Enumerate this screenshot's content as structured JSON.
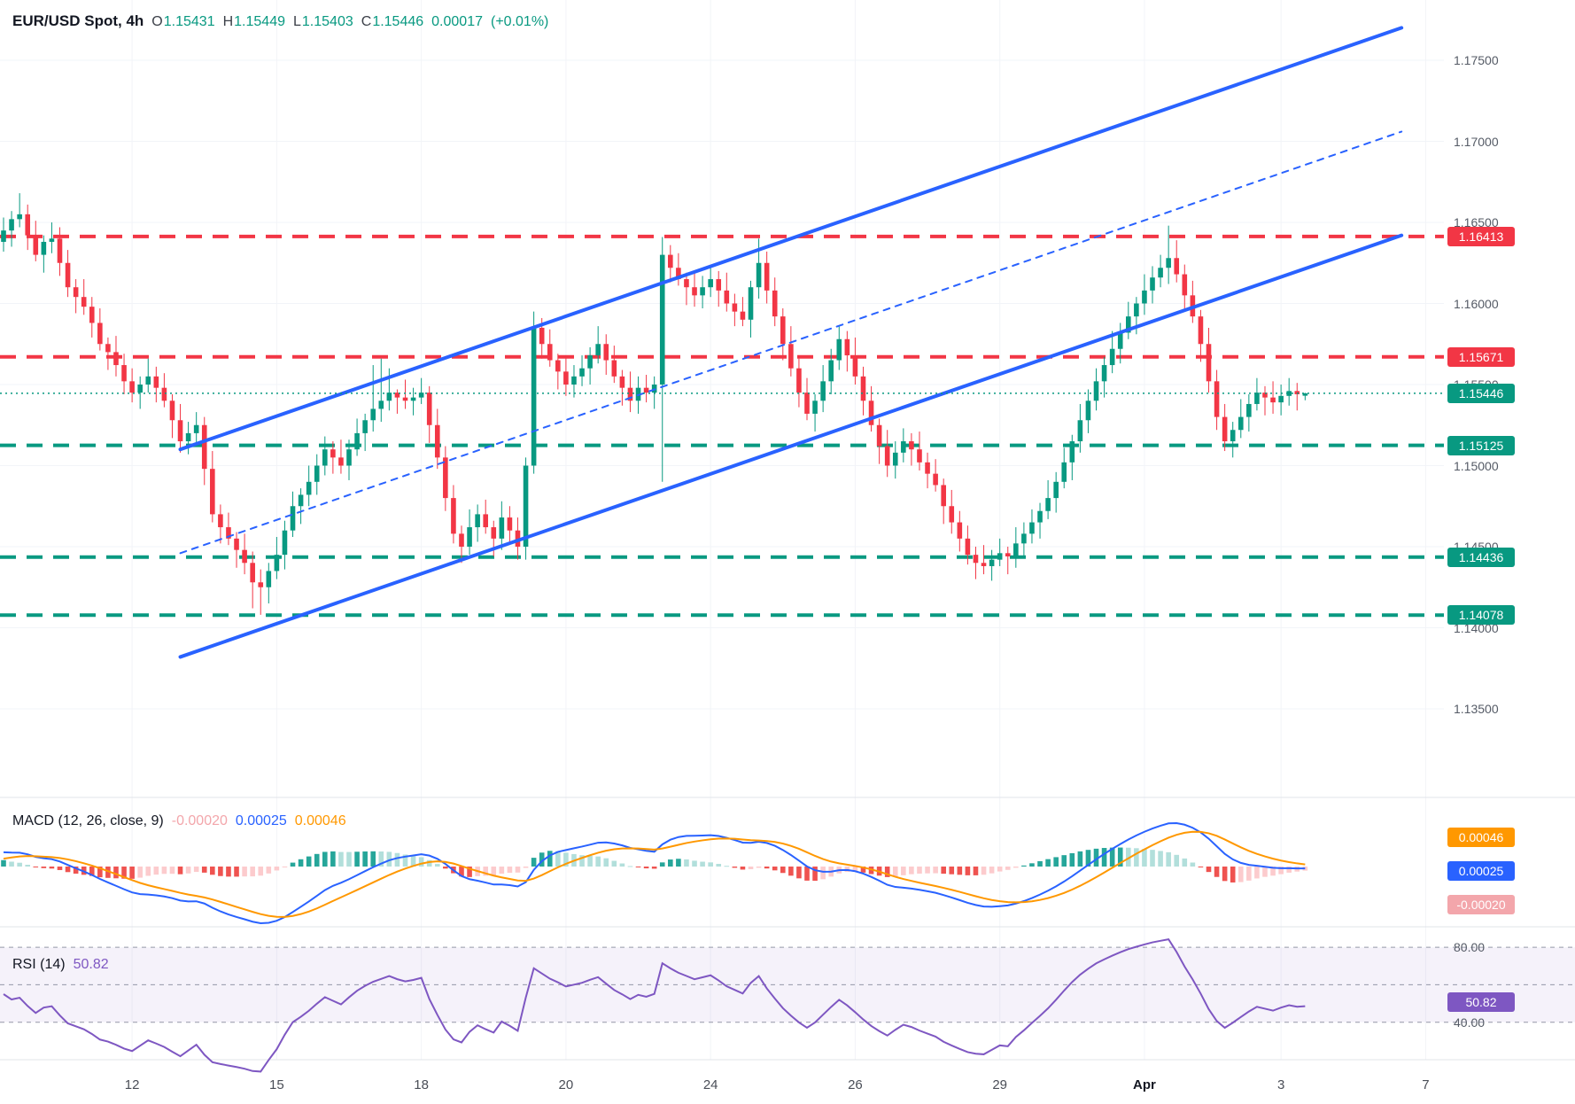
{
  "header": {
    "title": "EUR/USD Spot, 4h",
    "ohlc": [
      {
        "label": "O",
        "value": "1.15431"
      },
      {
        "label": "H",
        "value": "1.15449"
      },
      {
        "label": "L",
        "value": "1.15403"
      },
      {
        "label": "C",
        "value": "1.15446"
      }
    ],
    "change": "0.00017",
    "change_pct": "(+0.01%)"
  },
  "macd_legend": {
    "title": "MACD (12, 26, close, 9)",
    "histogram": "-0.00020",
    "macd": "0.00025",
    "signal": "0.00046"
  },
  "rsi_legend": {
    "title": "RSI (14)",
    "value": "50.82"
  },
  "axis": {
    "price_ticks": [
      {
        "price": 1.175,
        "label": "1.17500"
      },
      {
        "price": 1.17,
        "label": "1.17000"
      },
      {
        "price": 1.165,
        "label": "1.16500"
      },
      {
        "price": 1.16,
        "label": "1.16000"
      },
      {
        "price": 1.155,
        "label": "1.15500"
      },
      {
        "price": 1.15,
        "label": "1.15000"
      },
      {
        "price": 1.145,
        "label": "1.14500"
      },
      {
        "price": 1.14,
        "label": "1.14000"
      },
      {
        "price": 1.135,
        "label": "1.13500"
      }
    ],
    "time_ticks": [
      {
        "index": 16,
        "label": "12"
      },
      {
        "index": 34,
        "label": "15"
      },
      {
        "index": 52,
        "label": "18"
      },
      {
        "index": 70,
        "label": "20"
      },
      {
        "index": 88,
        "label": "24"
      },
      {
        "index": 106,
        "label": "26"
      },
      {
        "index": 124,
        "label": "29"
      },
      {
        "index": 142,
        "label": "Apr",
        "emphasis": true
      },
      {
        "index": 159,
        "label": "3"
      },
      {
        "index": 177,
        "label": "7"
      }
    ],
    "rsi_ticks": [
      {
        "value": 80,
        "label": "80.00"
      },
      {
        "value": 40,
        "label": "40.00"
      }
    ]
  },
  "badges": {
    "macd": [
      {
        "label": "0.00046",
        "color": "#ff9800"
      },
      {
        "label": "0.00025",
        "color": "#2962ff"
      },
      {
        "label": "-0.00020",
        "color": "#f3a6ab"
      }
    ],
    "rsi": {
      "label": "50.82"
    }
  },
  "colors": {
    "up": "#089981",
    "down": "#f23645",
    "trend": "#2962ff",
    "grid": "#f2f4f8",
    "separator": "#e1e4ea",
    "macd_pos": "#26a69a",
    "macd_pos_light": "#b2dfdb",
    "macd_neg": "#ef5350",
    "macd_neg_light": "#fccbcd",
    "macd_line": "#2962ff",
    "macd_signal": "#ff9800",
    "rsi_line": "#7e57c2",
    "rsi_band": "rgba(126,87,194,0.08)",
    "rsi_level": "#9598a8"
  },
  "chart_data": {
    "type": "candlestick",
    "symbol": "EUR/USD Spot",
    "timeframe": "4h",
    "current_bar": {
      "open": 1.15431,
      "high": 1.15449,
      "low": 1.15403,
      "close": 1.15446,
      "change": 0.00017,
      "change_pct": 0.01
    },
    "ylim": [
      1.1298,
      1.1787
    ],
    "candles": [
      [
        1.1638,
        1.1653,
        1.1632,
        1.1645
      ],
      [
        1.1645,
        1.1657,
        1.1635,
        1.1652
      ],
      [
        1.1652,
        1.1668,
        1.1647,
        1.1655
      ],
      [
        1.1655,
        1.1661,
        1.1633,
        1.1642
      ],
      [
        1.1642,
        1.1651,
        1.1626,
        1.163
      ],
      [
        1.163,
        1.1642,
        1.1619,
        1.1638
      ],
      [
        1.1638,
        1.165,
        1.1631,
        1.164
      ],
      [
        1.164,
        1.1647,
        1.1617,
        1.1625
      ],
      [
        1.1625,
        1.1633,
        1.1604,
        1.161
      ],
      [
        1.161,
        1.1615,
        1.1594,
        1.1604
      ],
      [
        1.1604,
        1.1615,
        1.1593,
        1.1598
      ],
      [
        1.1598,
        1.1604,
        1.1579,
        1.1588
      ],
      [
        1.1588,
        1.1597,
        1.1571,
        1.1575
      ],
      [
        1.1575,
        1.1579,
        1.1559,
        1.157
      ],
      [
        1.157,
        1.158,
        1.1555,
        1.1562
      ],
      [
        1.1562,
        1.1569,
        1.1544,
        1.1552
      ],
      [
        1.1552,
        1.156,
        1.1539,
        1.1545
      ],
      [
        1.1545,
        1.1555,
        1.1535,
        1.155
      ],
      [
        1.155,
        1.1566,
        1.1545,
        1.1555
      ],
      [
        1.1555,
        1.1561,
        1.1539,
        1.1548
      ],
      [
        1.1548,
        1.1557,
        1.1536,
        1.154
      ],
      [
        1.154,
        1.1544,
        1.1517,
        1.1528
      ],
      [
        1.1528,
        1.1538,
        1.1508,
        1.1515
      ],
      [
        1.1515,
        1.1527,
        1.1507,
        1.152
      ],
      [
        1.152,
        1.1533,
        1.1514,
        1.1525
      ],
      [
        1.1525,
        1.153,
        1.1488,
        1.1498
      ],
      [
        1.1498,
        1.1509,
        1.1465,
        1.147
      ],
      [
        1.147,
        1.1476,
        1.1452,
        1.1462
      ],
      [
        1.1462,
        1.1471,
        1.1451,
        1.1455
      ],
      [
        1.1455,
        1.1459,
        1.1437,
        1.1448
      ],
      [
        1.1448,
        1.1458,
        1.1433,
        1.144
      ],
      [
        1.144,
        1.1447,
        1.1412,
        1.1428
      ],
      [
        1.1428,
        1.1436,
        1.1408,
        1.1425
      ],
      [
        1.1425,
        1.144,
        1.1415,
        1.1435
      ],
      [
        1.1435,
        1.1456,
        1.143,
        1.1445
      ],
      [
        1.1445,
        1.1466,
        1.1436,
        1.146
      ],
      [
        1.146,
        1.1484,
        1.1456,
        1.1475
      ],
      [
        1.1475,
        1.1486,
        1.1464,
        1.1482
      ],
      [
        1.1482,
        1.15,
        1.1475,
        1.149
      ],
      [
        1.149,
        1.1507,
        1.1482,
        1.15
      ],
      [
        1.15,
        1.1518,
        1.1494,
        1.151
      ],
      [
        1.151,
        1.1515,
        1.1495,
        1.1505
      ],
      [
        1.1505,
        1.1516,
        1.1495,
        1.15
      ],
      [
        1.15,
        1.1516,
        1.1491,
        1.151
      ],
      [
        1.151,
        1.1529,
        1.1506,
        1.152
      ],
      [
        1.152,
        1.1532,
        1.1509,
        1.1528
      ],
      [
        1.1528,
        1.1562,
        1.1521,
        1.1535
      ],
      [
        1.1535,
        1.1566,
        1.1527,
        1.154
      ],
      [
        1.154,
        1.156,
        1.1534,
        1.1545
      ],
      [
        1.1545,
        1.1547,
        1.1532,
        1.1542
      ],
      [
        1.1542,
        1.1553,
        1.1535,
        1.154
      ],
      [
        1.154,
        1.1548,
        1.1531,
        1.1542
      ],
      [
        1.1542,
        1.1554,
        1.1538,
        1.1545
      ],
      [
        1.1545,
        1.1549,
        1.1514,
        1.1525
      ],
      [
        1.1525,
        1.1535,
        1.1498,
        1.1505
      ],
      [
        1.1505,
        1.1512,
        1.1472,
        1.148
      ],
      [
        1.148,
        1.1488,
        1.1452,
        1.1458
      ],
      [
        1.1458,
        1.1463,
        1.144,
        1.145
      ],
      [
        1.145,
        1.1473,
        1.1445,
        1.1462
      ],
      [
        1.1462,
        1.1476,
        1.1453,
        1.147
      ],
      [
        1.147,
        1.1479,
        1.1458,
        1.1462
      ],
      [
        1.1462,
        1.1466,
        1.1444,
        1.1455
      ],
      [
        1.1455,
        1.1478,
        1.1448,
        1.1468
      ],
      [
        1.1468,
        1.1475,
        1.1452,
        1.146
      ],
      [
        1.146,
        1.1468,
        1.1442,
        1.145
      ],
      [
        1.145,
        1.1505,
        1.1442,
        1.15
      ],
      [
        1.15,
        1.1595,
        1.1495,
        1.1585
      ],
      [
        1.1585,
        1.1591,
        1.1566,
        1.1575
      ],
      [
        1.1575,
        1.1584,
        1.1561,
        1.1565
      ],
      [
        1.1565,
        1.1569,
        1.1547,
        1.1558
      ],
      [
        1.1558,
        1.1568,
        1.1543,
        1.155
      ],
      [
        1.155,
        1.1562,
        1.1542,
        1.1555
      ],
      [
        1.1555,
        1.1568,
        1.1549,
        1.156
      ],
      [
        1.156,
        1.1573,
        1.155,
        1.1568
      ],
      [
        1.1568,
        1.1586,
        1.1563,
        1.1575
      ],
      [
        1.1575,
        1.1581,
        1.1556,
        1.1565
      ],
      [
        1.1565,
        1.1574,
        1.1551,
        1.1555
      ],
      [
        1.1555,
        1.1559,
        1.1537,
        1.1548
      ],
      [
        1.1548,
        1.1558,
        1.1533,
        1.154
      ],
      [
        1.154,
        1.1555,
        1.1532,
        1.1548
      ],
      [
        1.1548,
        1.1556,
        1.1539,
        1.1545
      ],
      [
        1.1545,
        1.1555,
        1.1535,
        1.155
      ],
      [
        1.155,
        1.1641,
        1.149,
        1.163
      ],
      [
        1.163,
        1.1636,
        1.1613,
        1.1622
      ],
      [
        1.1622,
        1.1631,
        1.1611,
        1.1615
      ],
      [
        1.1615,
        1.1619,
        1.1599,
        1.161
      ],
      [
        1.161,
        1.162,
        1.1598,
        1.1605
      ],
      [
        1.1605,
        1.1617,
        1.1597,
        1.161
      ],
      [
        1.161,
        1.1623,
        1.1604,
        1.1615
      ],
      [
        1.1615,
        1.162,
        1.1598,
        1.1608
      ],
      [
        1.1608,
        1.1619,
        1.1595,
        1.16
      ],
      [
        1.16,
        1.1606,
        1.1586,
        1.1595
      ],
      [
        1.1595,
        1.1604,
        1.1586,
        1.159
      ],
      [
        1.159,
        1.1614,
        1.1579,
        1.161
      ],
      [
        1.161,
        1.164,
        1.1603,
        1.1625
      ],
      [
        1.1625,
        1.1632,
        1.16,
        1.1608
      ],
      [
        1.1608,
        1.1616,
        1.1586,
        1.1592
      ],
      [
        1.1592,
        1.1597,
        1.1565,
        1.1575
      ],
      [
        1.1575,
        1.1586,
        1.1555,
        1.156
      ],
      [
        1.156,
        1.1566,
        1.1536,
        1.1545
      ],
      [
        1.1545,
        1.1554,
        1.1528,
        1.1532
      ],
      [
        1.1532,
        1.1544,
        1.1521,
        1.154
      ],
      [
        1.154,
        1.1562,
        1.1533,
        1.1552
      ],
      [
        1.1552,
        1.1572,
        1.1544,
        1.1565
      ],
      [
        1.1565,
        1.1586,
        1.1559,
        1.1578
      ],
      [
        1.1578,
        1.1583,
        1.1558,
        1.1568
      ],
      [
        1.1568,
        1.1579,
        1.155,
        1.1555
      ],
      [
        1.1555,
        1.1561,
        1.1531,
        1.154
      ],
      [
        1.154,
        1.1549,
        1.1521,
        1.1525
      ],
      [
        1.1525,
        1.1529,
        1.1501,
        1.1512
      ],
      [
        1.1512,
        1.1522,
        1.1493,
        1.15
      ],
      [
        1.15,
        1.1515,
        1.1492,
        1.1508
      ],
      [
        1.1508,
        1.1523,
        1.1502,
        1.1515
      ],
      [
        1.1515,
        1.152,
        1.15,
        1.151
      ],
      [
        1.151,
        1.1521,
        1.1497,
        1.1502
      ],
      [
        1.1502,
        1.1508,
        1.1486,
        1.1495
      ],
      [
        1.1495,
        1.1504,
        1.1484,
        1.1488
      ],
      [
        1.1488,
        1.1492,
        1.1464,
        1.1475
      ],
      [
        1.1475,
        1.1485,
        1.1458,
        1.1465
      ],
      [
        1.1465,
        1.1472,
        1.1447,
        1.1455
      ],
      [
        1.1455,
        1.1463,
        1.1439,
        1.1445
      ],
      [
        1.1445,
        1.145,
        1.143,
        1.144
      ],
      [
        1.144,
        1.1451,
        1.1433,
        1.1438
      ],
      [
        1.1438,
        1.1448,
        1.1429,
        1.1442
      ],
      [
        1.1442,
        1.1455,
        1.1438,
        1.1446
      ],
      [
        1.1446,
        1.145,
        1.1433,
        1.1444
      ],
      [
        1.1444,
        1.1462,
        1.1437,
        1.1452
      ],
      [
        1.1452,
        1.1465,
        1.1444,
        1.1458
      ],
      [
        1.1458,
        1.1473,
        1.1452,
        1.1465
      ],
      [
        1.1465,
        1.1477,
        1.1455,
        1.1472
      ],
      [
        1.1472,
        1.1491,
        1.1467,
        1.148
      ],
      [
        1.148,
        1.1496,
        1.1471,
        1.149
      ],
      [
        1.149,
        1.1511,
        1.1486,
        1.1502
      ],
      [
        1.1502,
        1.1519,
        1.1491,
        1.1515
      ],
      [
        1.1515,
        1.1538,
        1.1508,
        1.1528
      ],
      [
        1.1528,
        1.1547,
        1.152,
        1.154
      ],
      [
        1.154,
        1.156,
        1.1534,
        1.1552
      ],
      [
        1.1552,
        1.1567,
        1.1542,
        1.1562
      ],
      [
        1.1562,
        1.1583,
        1.1557,
        1.1572
      ],
      [
        1.1572,
        1.1588,
        1.1563,
        1.1582
      ],
      [
        1.1582,
        1.1601,
        1.1578,
        1.1592
      ],
      [
        1.1592,
        1.1604,
        1.1581,
        1.16
      ],
      [
        1.16,
        1.1618,
        1.1593,
        1.1608
      ],
      [
        1.1608,
        1.1623,
        1.16,
        1.1616
      ],
      [
        1.1616,
        1.163,
        1.161,
        1.1622
      ],
      [
        1.1622,
        1.1648,
        1.1612,
        1.1628
      ],
      [
        1.1628,
        1.1639,
        1.1613,
        1.1618
      ],
      [
        1.1618,
        1.1624,
        1.1596,
        1.1605
      ],
      [
        1.1605,
        1.1614,
        1.1588,
        1.1592
      ],
      [
        1.1592,
        1.1596,
        1.1564,
        1.1575
      ],
      [
        1.1575,
        1.1585,
        1.1545,
        1.1552
      ],
      [
        1.1552,
        1.1559,
        1.1522,
        1.153
      ],
      [
        1.153,
        1.1538,
        1.1509,
        1.1515
      ],
      [
        1.1515,
        1.1527,
        1.1505,
        1.1522
      ],
      [
        1.1522,
        1.1541,
        1.1517,
        1.153
      ],
      [
        1.153,
        1.1544,
        1.1521,
        1.1538
      ],
      [
        1.1538,
        1.1554,
        1.1534,
        1.1545
      ],
      [
        1.1545,
        1.1549,
        1.1531,
        1.1542
      ],
      [
        1.1542,
        1.1552,
        1.1532,
        1.1539
      ],
      [
        1.1539,
        1.155,
        1.1531,
        1.1543
      ],
      [
        1.1543,
        1.1554,
        1.1537,
        1.1546
      ],
      [
        1.1546,
        1.1551,
        1.1534,
        1.1544
      ],
      [
        1.15431,
        1.15449,
        1.15403,
        1.15446
      ]
    ],
    "levels": [
      {
        "price": 1.16413,
        "label": "1.16413",
        "role": "resistance"
      },
      {
        "price": 1.15671,
        "label": "1.15671",
        "role": "resistance"
      },
      {
        "price": 1.15125,
        "label": "1.15125",
        "role": "support"
      },
      {
        "price": 1.14436,
        "label": "1.14436",
        "role": "support"
      },
      {
        "price": 1.14078,
        "label": "1.14078",
        "role": "support"
      }
    ],
    "last_price": {
      "price": 1.15446,
      "label": "1.15446"
    },
    "trendlines": [
      {
        "from_index": 22,
        "from_price": 1.1382,
        "to_index": 174,
        "to_price": 1.1642,
        "style": "solid"
      },
      {
        "from_index": 22,
        "from_price": 1.151,
        "to_index": 174,
        "to_price": 1.177,
        "style": "solid"
      },
      {
        "from_index": 22,
        "from_price": 1.1446,
        "to_index": 174,
        "to_price": 1.1706,
        "style": "dashed"
      }
    ],
    "indicators": {
      "macd": {
        "params": "12, 26, close, 9",
        "current_histogram": -0.0002,
        "current_macd": 0.00025,
        "current_signal": 0.00046
      },
      "rsi": {
        "period": 14,
        "current": 50.82,
        "upper_band": 80,
        "middle_band": 60,
        "lower_band": 40
      }
    }
  }
}
